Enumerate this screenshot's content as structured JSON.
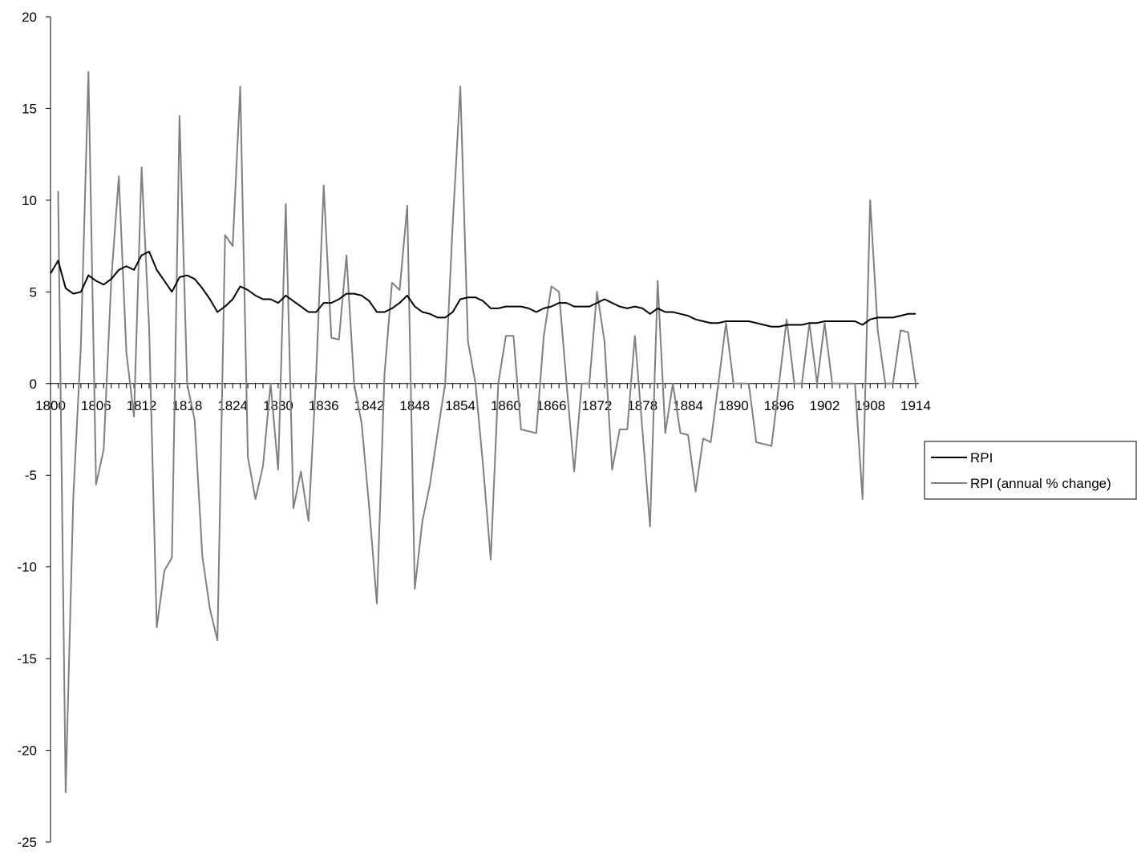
{
  "chart_data": {
    "type": "line",
    "title": "",
    "xlabel": "",
    "ylabel": "",
    "xlim": [
      1800,
      1914
    ],
    "ylim": [
      -25,
      20
    ],
    "grid": false,
    "legend": "right",
    "x_tick_labels": [
      "1800",
      "1806",
      "1812",
      "1818",
      "1824",
      "1830",
      "1836",
      "1842",
      "1848",
      "1854",
      "1860",
      "1866",
      "1872",
      "1878",
      "1884",
      "1890",
      "1896",
      "1902",
      "1908",
      "1914"
    ],
    "y_tick_labels": [
      "20",
      "15",
      "10",
      "5",
      "0",
      "-5",
      "-10",
      "-15",
      "-20",
      "-25"
    ],
    "x_ticks": [
      1800,
      1806,
      1812,
      1818,
      1824,
      1830,
      1836,
      1842,
      1848,
      1854,
      1860,
      1866,
      1872,
      1878,
      1884,
      1890,
      1896,
      1902,
      1908,
      1914
    ],
    "y_ticks": [
      20,
      15,
      10,
      5,
      0,
      -5,
      -10,
      -15,
      -20,
      -25
    ],
    "series": [
      {
        "name": "RPI",
        "color": "#000000",
        "points": [
          [
            1800,
            6.0
          ],
          [
            1801,
            6.7
          ],
          [
            1802,
            5.2
          ],
          [
            1803,
            4.9
          ],
          [
            1804,
            5.0
          ],
          [
            1805,
            5.9
          ],
          [
            1806,
            5.6
          ],
          [
            1807,
            5.4
          ],
          [
            1808,
            5.7
          ],
          [
            1809,
            6.2
          ],
          [
            1810,
            6.4
          ],
          [
            1811,
            6.2
          ],
          [
            1812,
            7.0
          ],
          [
            1813,
            7.2
          ],
          [
            1814,
            6.2
          ],
          [
            1815,
            5.6
          ],
          [
            1816,
            5.0
          ],
          [
            1817,
            5.8
          ],
          [
            1818,
            5.9
          ],
          [
            1819,
            5.7
          ],
          [
            1820,
            5.2
          ],
          [
            1821,
            4.6
          ],
          [
            1822,
            3.9
          ],
          [
            1823,
            4.2
          ],
          [
            1824,
            4.6
          ],
          [
            1825,
            5.3
          ],
          [
            1826,
            5.1
          ],
          [
            1827,
            4.8
          ],
          [
            1828,
            4.6
          ],
          [
            1829,
            4.6
          ],
          [
            1830,
            4.4
          ],
          [
            1831,
            4.8
          ],
          [
            1832,
            4.5
          ],
          [
            1833,
            4.2
          ],
          [
            1834,
            3.9
          ],
          [
            1835,
            3.9
          ],
          [
            1836,
            4.4
          ],
          [
            1837,
            4.4
          ],
          [
            1838,
            4.6
          ],
          [
            1839,
            4.9
          ],
          [
            1840,
            4.9
          ],
          [
            1841,
            4.8
          ],
          [
            1842,
            4.5
          ],
          [
            1843,
            3.9
          ],
          [
            1844,
            3.9
          ],
          [
            1845,
            4.1
          ],
          [
            1846,
            4.4
          ],
          [
            1847,
            4.8
          ],
          [
            1848,
            4.2
          ],
          [
            1849,
            3.9
          ],
          [
            1850,
            3.8
          ],
          [
            1851,
            3.6
          ],
          [
            1852,
            3.6
          ],
          [
            1853,
            3.9
          ],
          [
            1854,
            4.6
          ],
          [
            1855,
            4.7
          ],
          [
            1856,
            4.7
          ],
          [
            1857,
            4.5
          ],
          [
            1858,
            4.1
          ],
          [
            1859,
            4.1
          ],
          [
            1860,
            4.2
          ],
          [
            1861,
            4.2
          ],
          [
            1862,
            4.2
          ],
          [
            1863,
            4.1
          ],
          [
            1864,
            3.9
          ],
          [
            1865,
            4.1
          ],
          [
            1866,
            4.2
          ],
          [
            1867,
            4.4
          ],
          [
            1868,
            4.4
          ],
          [
            1869,
            4.2
          ],
          [
            1870,
            4.2
          ],
          [
            1871,
            4.2
          ],
          [
            1872,
            4.4
          ],
          [
            1873,
            4.6
          ],
          [
            1874,
            4.4
          ],
          [
            1875,
            4.2
          ],
          [
            1876,
            4.1
          ],
          [
            1877,
            4.2
          ],
          [
            1878,
            4.1
          ],
          [
            1879,
            3.8
          ],
          [
            1880,
            4.1
          ],
          [
            1881,
            3.9
          ],
          [
            1882,
            3.9
          ],
          [
            1883,
            3.8
          ],
          [
            1884,
            3.7
          ],
          [
            1885,
            3.5
          ],
          [
            1886,
            3.4
          ],
          [
            1887,
            3.3
          ],
          [
            1888,
            3.3
          ],
          [
            1889,
            3.4
          ],
          [
            1890,
            3.4
          ],
          [
            1891,
            3.4
          ],
          [
            1892,
            3.4
          ],
          [
            1893,
            3.3
          ],
          [
            1894,
            3.2
          ],
          [
            1895,
            3.1
          ],
          [
            1896,
            3.1
          ],
          [
            1897,
            3.2
          ],
          [
            1898,
            3.2
          ],
          [
            1899,
            3.2
          ],
          [
            1900,
            3.3
          ],
          [
            1901,
            3.3
          ],
          [
            1902,
            3.4
          ],
          [
            1903,
            3.4
          ],
          [
            1904,
            3.4
          ],
          [
            1905,
            3.4
          ],
          [
            1906,
            3.4
          ],
          [
            1907,
            3.2
          ],
          [
            1908,
            3.5
          ],
          [
            1909,
            3.6
          ],
          [
            1910,
            3.6
          ],
          [
            1911,
            3.6
          ],
          [
            1912,
            3.7
          ],
          [
            1913,
            3.8
          ],
          [
            1914,
            3.8
          ]
        ]
      },
      {
        "name": "RPI  (annual % change)",
        "color": "#808080",
        "points": [
          [
            1801,
            10.5
          ],
          [
            1802,
            -22.3
          ],
          [
            1803,
            -6.2
          ],
          [
            1804,
            2.1
          ],
          [
            1805,
            17.0
          ],
          [
            1806,
            -5.5
          ],
          [
            1807,
            -3.6
          ],
          [
            1808,
            5.6
          ],
          [
            1809,
            11.3
          ],
          [
            1810,
            1.7
          ],
          [
            1811,
            -1.8
          ],
          [
            1812,
            11.8
          ],
          [
            1813,
            3.0
          ],
          [
            1814,
            -13.3
          ],
          [
            1815,
            -10.2
          ],
          [
            1816,
            -9.5
          ],
          [
            1817,
            14.6
          ],
          [
            1818,
            0.0
          ],
          [
            1819,
            -2.0
          ],
          [
            1820,
            -9.4
          ],
          [
            1821,
            -12.3
          ],
          [
            1822,
            -14.0
          ],
          [
            1823,
            8.1
          ],
          [
            1824,
            7.5
          ],
          [
            1825,
            16.2
          ],
          [
            1826,
            -4.0
          ],
          [
            1827,
            -6.3
          ],
          [
            1828,
            -4.5
          ],
          [
            1829,
            0.0
          ],
          [
            1830,
            -4.7
          ],
          [
            1831,
            9.8
          ],
          [
            1832,
            -6.8
          ],
          [
            1833,
            -4.8
          ],
          [
            1834,
            -7.5
          ],
          [
            1835,
            0.5
          ],
          [
            1836,
            10.8
          ],
          [
            1837,
            2.5
          ],
          [
            1838,
            2.4
          ],
          [
            1839,
            7.0
          ],
          [
            1840,
            0.0
          ],
          [
            1841,
            -2.2
          ],
          [
            1842,
            -6.8
          ],
          [
            1843,
            -12.0
          ],
          [
            1844,
            0.5
          ],
          [
            1845,
            5.5
          ],
          [
            1846,
            5.1
          ],
          [
            1847,
            9.7
          ],
          [
            1848,
            -11.2
          ],
          [
            1849,
            -7.5
          ],
          [
            1850,
            -5.5
          ],
          [
            1851,
            -2.7
          ],
          [
            1852,
            0.0
          ],
          [
            1853,
            8.7
          ],
          [
            1854,
            16.2
          ],
          [
            1855,
            2.3
          ],
          [
            1856,
            0.0
          ],
          [
            1857,
            -4.5
          ],
          [
            1858,
            -9.6
          ],
          [
            1859,
            0.0
          ],
          [
            1860,
            2.6
          ],
          [
            1861,
            2.6
          ],
          [
            1862,
            -2.5
          ],
          [
            1863,
            -2.6
          ],
          [
            1864,
            -2.7
          ],
          [
            1865,
            2.6
          ],
          [
            1866,
            5.3
          ],
          [
            1867,
            5.0
          ],
          [
            1868,
            0.0
          ],
          [
            1869,
            -4.8
          ],
          [
            1870,
            0.0
          ],
          [
            1871,
            0.0
          ],
          [
            1872,
            5.0
          ],
          [
            1873,
            2.3
          ],
          [
            1874,
            -4.7
          ],
          [
            1875,
            -2.5
          ],
          [
            1876,
            -2.5
          ],
          [
            1877,
            2.6
          ],
          [
            1878,
            -2.6
          ],
          [
            1879,
            -7.8
          ],
          [
            1880,
            5.6
          ],
          [
            1881,
            -2.7
          ],
          [
            1882,
            0.0
          ],
          [
            1883,
            -2.7
          ],
          [
            1884,
            -2.8
          ],
          [
            1885,
            -5.9
          ],
          [
            1886,
            -3.0
          ],
          [
            1887,
            -3.2
          ],
          [
            1888,
            0.0
          ],
          [
            1889,
            3.3
          ],
          [
            1890,
            0.0
          ],
          [
            1891,
            0.0
          ],
          [
            1892,
            0.0
          ],
          [
            1893,
            -3.2
          ],
          [
            1894,
            -3.3
          ],
          [
            1895,
            -3.4
          ],
          [
            1896,
            0.0
          ],
          [
            1897,
            3.5
          ],
          [
            1898,
            0.0
          ],
          [
            1899,
            0.0
          ],
          [
            1900,
            3.3
          ],
          [
            1901,
            0.0
          ],
          [
            1902,
            3.3
          ],
          [
            1903,
            0.0
          ],
          [
            1904,
            0.0
          ],
          [
            1905,
            0.0
          ],
          [
            1906,
            0.0
          ],
          [
            1907,
            -6.3
          ],
          [
            1908,
            10.0
          ],
          [
            1909,
            2.9
          ],
          [
            1910,
            0.0
          ],
          [
            1911,
            0.0
          ],
          [
            1912,
            2.9
          ],
          [
            1913,
            2.8
          ],
          [
            1914,
            0.0
          ]
        ]
      }
    ]
  }
}
